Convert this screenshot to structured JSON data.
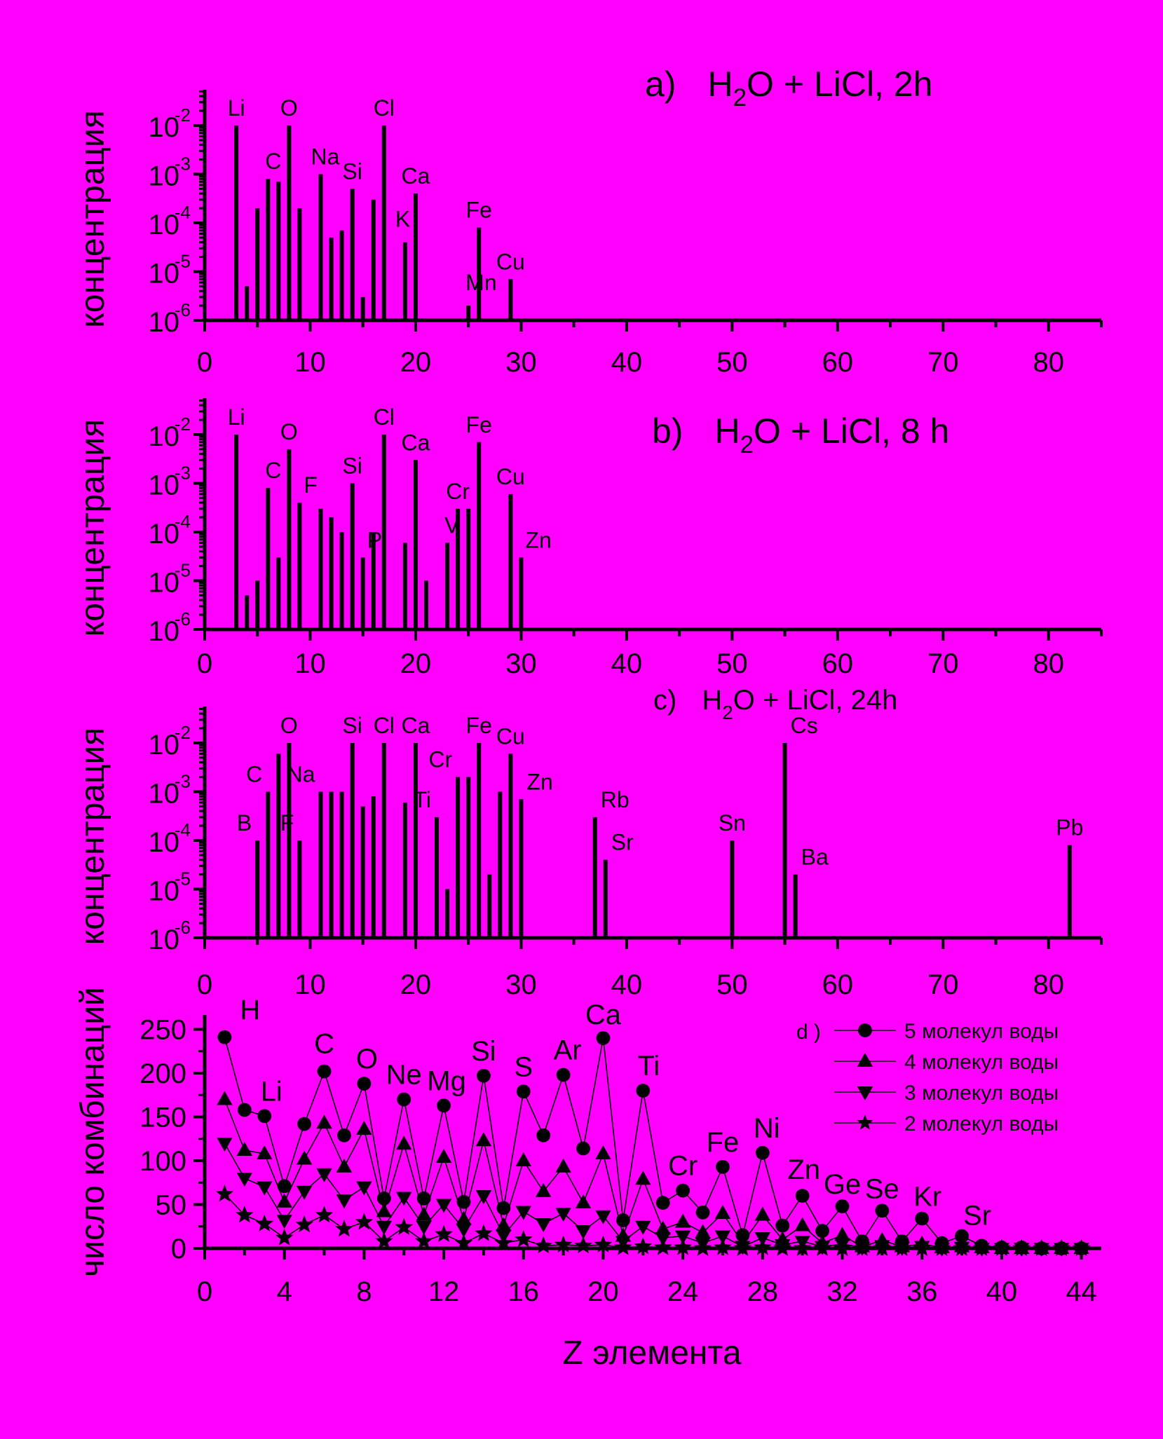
{
  "page": {
    "background": "#ff00ff",
    "foreground": "#000000"
  },
  "chart_data": [
    {
      "id": "a",
      "type": "bar",
      "title_prefix": "a)",
      "title_h": "H",
      "title_sub": "2",
      "title_rest": "O + LiCl,  2h",
      "ylabel": "концентрация",
      "xlabel": "",
      "yscale": "log",
      "ylim": [
        1e-06,
        0.05
      ],
      "xlim": [
        0,
        85
      ],
      "xticks": [
        0,
        10,
        20,
        30,
        40,
        50,
        60,
        70,
        80
      ],
      "yticks": [
        {
          "value": 1e-06,
          "base": "10",
          "exp": "-6"
        },
        {
          "value": 1e-05,
          "base": "10",
          "exp": "-5"
        },
        {
          "value": 0.0001,
          "base": "10",
          "exp": "-4"
        },
        {
          "value": 0.001,
          "base": "10",
          "exp": "-3"
        },
        {
          "value": 0.01,
          "base": "10",
          "exp": "-2"
        }
      ],
      "bars": [
        {
          "z": 3,
          "value": 0.01,
          "label": "Li"
        },
        {
          "z": 4,
          "value": 5e-06
        },
        {
          "z": 5,
          "value": 0.0002
        },
        {
          "z": 6,
          "value": 0.0008,
          "label": "C"
        },
        {
          "z": 7,
          "value": 0.0007
        },
        {
          "z": 8,
          "value": 0.01,
          "label": "O"
        },
        {
          "z": 9,
          "value": 0.0002
        },
        {
          "z": 11,
          "value": 0.001,
          "label": "Na"
        },
        {
          "z": 12,
          "value": 5e-05
        },
        {
          "z": 13,
          "value": 7e-05
        },
        {
          "z": 14,
          "value": 0.0005,
          "label": "Si"
        },
        {
          "z": 15,
          "value": 3e-06
        },
        {
          "z": 16,
          "value": 0.0003
        },
        {
          "z": 17,
          "value": 0.01,
          "label": "Cl"
        },
        {
          "z": 19,
          "value": 4e-05,
          "label": "K"
        },
        {
          "z": 20,
          "value": 0.0004,
          "label": "Ca"
        },
        {
          "z": 25,
          "value": 2e-06,
          "label": "Mn"
        },
        {
          "z": 26,
          "value": 8e-05,
          "label": "Fe"
        },
        {
          "z": 29,
          "value": 7e-06,
          "label": "Cu"
        }
      ]
    },
    {
      "id": "b",
      "type": "bar",
      "title_prefix": "b)",
      "title_h": "H",
      "title_sub": "2",
      "title_rest": "O + LiCl,  8 h",
      "ylabel": "концентрация",
      "xlabel": "",
      "yscale": "log",
      "ylim": [
        1e-06,
        0.05
      ],
      "xlim": [
        0,
        85
      ],
      "xticks": [
        0,
        10,
        20,
        30,
        40,
        50,
        60,
        70,
        80
      ],
      "yticks": [
        {
          "value": 1e-06,
          "base": "10",
          "exp": "-6"
        },
        {
          "value": 1e-05,
          "base": "10",
          "exp": "-5"
        },
        {
          "value": 0.0001,
          "base": "10",
          "exp": "-4"
        },
        {
          "value": 0.001,
          "base": "10",
          "exp": "-3"
        },
        {
          "value": 0.01,
          "base": "10",
          "exp": "-2"
        }
      ],
      "bars": [
        {
          "z": 3,
          "value": 0.01,
          "label": "Li"
        },
        {
          "z": 4,
          "value": 5e-06
        },
        {
          "z": 5,
          "value": 1e-05
        },
        {
          "z": 6,
          "value": 0.0008,
          "label": "C"
        },
        {
          "z": 7,
          "value": 3e-05
        },
        {
          "z": 8,
          "value": 0.005,
          "label": "O"
        },
        {
          "z": 9,
          "value": 0.0004,
          "label": "F"
        },
        {
          "z": 11,
          "value": 0.0003
        },
        {
          "z": 12,
          "value": 0.0002
        },
        {
          "z": 13,
          "value": 0.0001
        },
        {
          "z": 14,
          "value": 0.001,
          "label": "Si"
        },
        {
          "z": 15,
          "value": 3e-05,
          "label": "P"
        },
        {
          "z": 16,
          "value": 0.0001
        },
        {
          "z": 17,
          "value": 0.01,
          "label": "Cl"
        },
        {
          "z": 19,
          "value": 6e-05
        },
        {
          "z": 20,
          "value": 0.003,
          "label": "Ca"
        },
        {
          "z": 21,
          "value": 1e-05
        },
        {
          "z": 23,
          "value": 6e-05,
          "label": "V"
        },
        {
          "z": 24,
          "value": 0.0003,
          "label": "Cr"
        },
        {
          "z": 25,
          "value": 0.0003
        },
        {
          "z": 26,
          "value": 0.007,
          "label": "Fe"
        },
        {
          "z": 29,
          "value": 0.0006,
          "label": "Cu"
        },
        {
          "z": 30,
          "value": 3e-05,
          "label": "Zn"
        }
      ]
    },
    {
      "id": "c",
      "type": "bar",
      "title_prefix": "c)",
      "title_h": "H",
      "title_sub": "2",
      "title_rest": "O + LiCl,  24h",
      "ylabel": "концентрация",
      "xlabel": "",
      "yscale": "log",
      "ylim": [
        1e-06,
        0.05
      ],
      "xlim": [
        0,
        85
      ],
      "xticks": [
        0,
        10,
        20,
        30,
        40,
        50,
        60,
        70,
        80
      ],
      "yticks": [
        {
          "value": 1e-06,
          "base": "10",
          "exp": "-6"
        },
        {
          "value": 1e-05,
          "base": "10",
          "exp": "-5"
        },
        {
          "value": 0.0001,
          "base": "10",
          "exp": "-4"
        },
        {
          "value": 0.001,
          "base": "10",
          "exp": "-3"
        },
        {
          "value": 0.01,
          "base": "10",
          "exp": "-2"
        }
      ],
      "bars": [
        {
          "z": 5,
          "value": 0.0001,
          "label": "B"
        },
        {
          "z": 6,
          "value": 0.001,
          "label": "C"
        },
        {
          "z": 7,
          "value": 0.006
        },
        {
          "z": 8,
          "value": 0.01,
          "label": "O"
        },
        {
          "z": 9,
          "value": 0.0001,
          "label": "F"
        },
        {
          "z": 11,
          "value": 0.001,
          "label": "Na"
        },
        {
          "z": 12,
          "value": 0.001
        },
        {
          "z": 13,
          "value": 0.001
        },
        {
          "z": 14,
          "value": 0.01,
          "label": "Si"
        },
        {
          "z": 15,
          "value": 0.0005
        },
        {
          "z": 16,
          "value": 0.0008
        },
        {
          "z": 17,
          "value": 0.01,
          "label": "Cl"
        },
        {
          "z": 19,
          "value": 0.0006
        },
        {
          "z": 20,
          "value": 0.01,
          "label": "Ca"
        },
        {
          "z": 22,
          "value": 0.0003,
          "label": "Ti"
        },
        {
          "z": 23,
          "value": 1e-05
        },
        {
          "z": 24,
          "value": 0.002,
          "label": "Cr"
        },
        {
          "z": 25,
          "value": 0.002
        },
        {
          "z": 26,
          "value": 0.01,
          "label": "Fe"
        },
        {
          "z": 27,
          "value": 2e-05
        },
        {
          "z": 28,
          "value": 0.001
        },
        {
          "z": 29,
          "value": 0.006,
          "label": "Cu"
        },
        {
          "z": 30,
          "value": 0.0007,
          "label": "Zn"
        },
        {
          "z": 37,
          "value": 0.0003,
          "label": "Rb"
        },
        {
          "z": 38,
          "value": 4e-05,
          "label": "Sr"
        },
        {
          "z": 50,
          "value": 0.0001,
          "label": "Sn"
        },
        {
          "z": 55,
          "value": 0.01,
          "label": "Cs"
        },
        {
          "z": 56,
          "value": 2e-05,
          "label": "Ba"
        },
        {
          "z": 82,
          "value": 8e-05,
          "label": "Pb"
        }
      ]
    },
    {
      "id": "d",
      "type": "line",
      "legend_title": "d )",
      "legend_position": "top-right",
      "ylabel": "число комбинаций",
      "xlabel": "Z элемента",
      "xlim": [
        0,
        45
      ],
      "ylim": [
        0,
        260
      ],
      "xticks": [
        0,
        4,
        8,
        12,
        16,
        20,
        24,
        28,
        32,
        36,
        40,
        44
      ],
      "yticks": [
        0,
        50,
        100,
        150,
        200,
        250
      ],
      "x": [
        1,
        2,
        3,
        4,
        5,
        6,
        7,
        8,
        9,
        10,
        11,
        12,
        13,
        14,
        15,
        16,
        17,
        18,
        19,
        20,
        21,
        22,
        23,
        24,
        25,
        26,
        27,
        28,
        29,
        30,
        31,
        32,
        33,
        34,
        35,
        36,
        37,
        38,
        39,
        40,
        41,
        42,
        43,
        44
      ],
      "series": [
        {
          "name": "5 молекул воды",
          "marker": "circle",
          "values": [
            241,
            158,
            151,
            71,
            142,
            202,
            129,
            188,
            57,
            170,
            57,
            163,
            53,
            197,
            46,
            179,
            129,
            198,
            114,
            240,
            32,
            180,
            52,
            66,
            41,
            93,
            15,
            109,
            26,
            60,
            20,
            48,
            8,
            43,
            8,
            34,
            6,
            14,
            3,
            1,
            1,
            0,
            0,
            0
          ]
        },
        {
          "name": "4 молекул воды",
          "marker": "triangle-up",
          "values": [
            170,
            112,
            108,
            53,
            102,
            143,
            93,
            136,
            42,
            119,
            38,
            104,
            33,
            123,
            26,
            100,
            65,
            93,
            52,
            108,
            14,
            79,
            22,
            30,
            18,
            40,
            6,
            38,
            10,
            26,
            6,
            15,
            2,
            9,
            2,
            5,
            1,
            2,
            1,
            0,
            0,
            0,
            0,
            0
          ]
        },
        {
          "name": "3 молекул воды",
          "marker": "triangle-down",
          "values": [
            120,
            80,
            70,
            32,
            65,
            85,
            55,
            70,
            25,
            58,
            25,
            50,
            22,
            60,
            15,
            42,
            28,
            40,
            20,
            37,
            8,
            25,
            12,
            14,
            6,
            14,
            2,
            12,
            4,
            8,
            2,
            5,
            1,
            3,
            1,
            2,
            0,
            1,
            0,
            0,
            0,
            0,
            0,
            0
          ]
        },
        {
          "name": "2 молекул воды",
          "marker": "star",
          "values": [
            62,
            38,
            28,
            12,
            27,
            38,
            22,
            30,
            8,
            24,
            8,
            16,
            6,
            17,
            6,
            10,
            3,
            4,
            3,
            4,
            1,
            2,
            1,
            1,
            0,
            1,
            0,
            1,
            0,
            0,
            0,
            0,
            0,
            0,
            0,
            0,
            0,
            0,
            0,
            0,
            0,
            0,
            0,
            0
          ]
        }
      ],
      "annotations": [
        {
          "z": 1,
          "label": "H"
        },
        {
          "z": 3,
          "label": "Li"
        },
        {
          "z": 6,
          "label": "C"
        },
        {
          "z": 8,
          "label": "O"
        },
        {
          "z": 10,
          "label": "Ne"
        },
        {
          "z": 12,
          "label": "Mg"
        },
        {
          "z": 14,
          "label": "Si"
        },
        {
          "z": 16,
          "label": "S"
        },
        {
          "z": 18,
          "label": "Ar"
        },
        {
          "z": 20,
          "label": "Ca"
        },
        {
          "z": 22,
          "label": "Ti"
        },
        {
          "z": 24,
          "label": "Cr"
        },
        {
          "z": 26,
          "label": "Fe"
        },
        {
          "z": 28,
          "label": "Ni"
        },
        {
          "z": 30,
          "label": "Zn"
        },
        {
          "z": 32,
          "label": "Ge"
        },
        {
          "z": 34,
          "label": "Se"
        },
        {
          "z": 36,
          "label": "Kr"
        },
        {
          "z": 38,
          "label": "Sr"
        }
      ]
    }
  ]
}
